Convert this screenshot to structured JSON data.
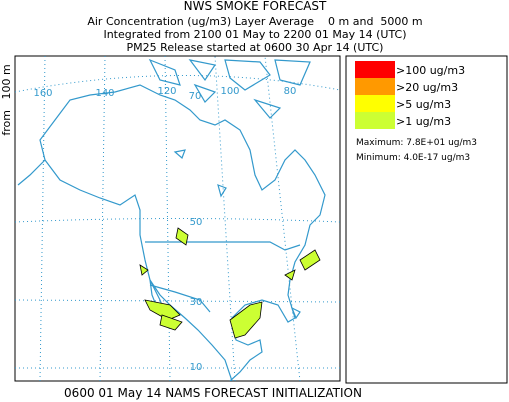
{
  "header": {
    "title": "NWS SMOKE FORECAST",
    "lines": [
      "Air Concentration (ug/m3) Layer Average    0 m and  5000 m",
      "Integrated from 2100 01 May to 2200 01 May 14 (UTC)",
      "PM25 Release started at 0600 30 Apr 14 (UTC)"
    ]
  },
  "axis_label": "from   100 m",
  "grid_labels": [
    "160",
    "140",
    "120",
    "70",
    "100",
    "80",
    "50",
    "30",
    "10"
  ],
  "legend": {
    "items": [
      {
        "label": ">100 ug/m3",
        "color": "#ff0000"
      },
      {
        "label": ">20 ug/m3",
        "color": "#ff9900"
      },
      {
        "label": ">5 ug/m3",
        "color": "#ffff00"
      },
      {
        "label": ">1 ug/m3",
        "color": "#ccff33"
      }
    ],
    "maximum": "Maximum: 7.8E+01 ug/m3",
    "minimum": "Minimum: 4.0E-17 ug/m3"
  },
  "footer": "0600 01 May 14 NAMS FORECAST INITIALIZATION"
}
